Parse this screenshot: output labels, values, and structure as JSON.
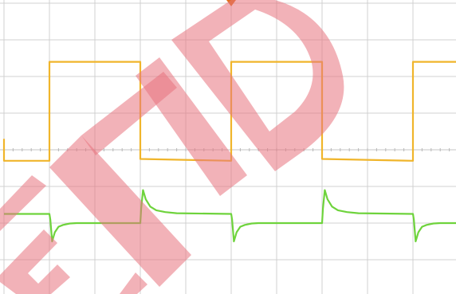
{
  "chart_data": {
    "type": "line",
    "title": "",
    "xlabel": "",
    "ylabel": "",
    "grid": true,
    "grid_divisions": {
      "x": 10,
      "y": 8
    },
    "xlim": [
      0,
      10
    ],
    "ylim": [
      -4,
      4
    ],
    "series": [
      {
        "color": "#f0b52b",
        "x": [
          0,
          0.0,
          1.0,
          1.0,
          3.0,
          3.0,
          5.0,
          5.0,
          7.0,
          7.0,
          9.0,
          9.0,
          10.0
        ],
        "y": [
          0.3,
          -0.3,
          -0.3,
          2.4,
          2.4,
          -0.25,
          -0.3,
          2.4,
          2.4,
          -0.25,
          -0.3,
          2.4,
          2.4
        ]
      },
      {
        "color": "#6ed33c",
        "x": [
          0,
          1.0,
          1.02,
          1.06,
          1.12,
          1.2,
          1.3,
          1.45,
          1.6,
          3.0,
          3.02,
          3.06,
          3.12,
          3.22,
          3.35,
          3.55,
          3.8,
          5.0,
          5.02,
          5.06,
          5.12,
          5.2,
          5.3,
          5.45,
          5.6,
          7.0,
          7.02,
          7.06,
          7.12,
          7.22,
          7.35,
          7.55,
          7.8,
          9.0,
          9.02,
          9.06,
          9.12,
          9.2,
          9.3,
          9.45,
          9.6,
          10.0
        ],
        "y": [
          -1.75,
          -1.75,
          -1.9,
          -2.5,
          -2.25,
          -2.1,
          -2.05,
          -2.01,
          -2.0,
          -2.0,
          -1.6,
          -1.1,
          -1.35,
          -1.55,
          -1.65,
          -1.7,
          -1.73,
          -1.75,
          -1.9,
          -2.5,
          -2.25,
          -2.1,
          -2.05,
          -2.01,
          -2.0,
          -2.0,
          -1.6,
          -1.1,
          -1.35,
          -1.55,
          -1.65,
          -1.7,
          -1.73,
          -1.75,
          -1.9,
          -2.5,
          -2.25,
          -2.1,
          -2.05,
          -2.01,
          -2.0,
          -2.0
        ]
      }
    ]
  },
  "overlay": {
    "trigger_marker_color": "#e0701c",
    "watermark_color": "#e8737e"
  }
}
